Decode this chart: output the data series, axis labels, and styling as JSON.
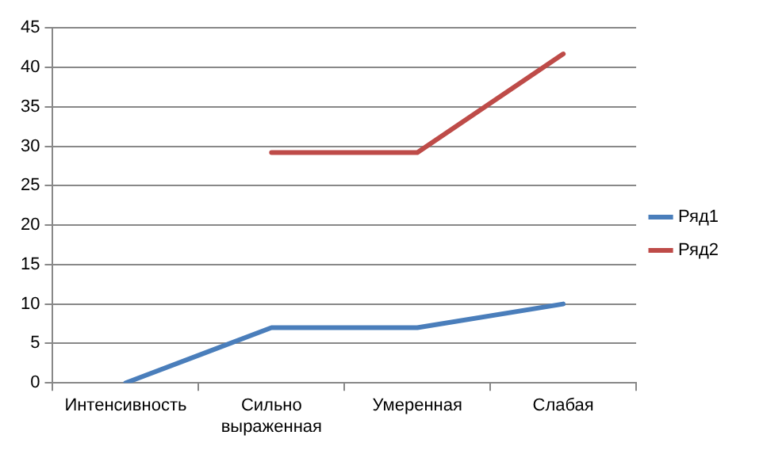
{
  "chart_data": {
    "type": "line",
    "categories": [
      "Интенсивность",
      "Сильно выраженная",
      "Умеренная",
      "Слабая"
    ],
    "series": [
      {
        "name": "Ряд1",
        "color": "#4a7ebb",
        "values": [
          0,
          7,
          7,
          10
        ]
      },
      {
        "name": "Ряд2",
        "color": "#be4b48",
        "values": [
          null,
          29.2,
          29.2,
          41.7
        ]
      }
    ],
    "ylim": [
      0,
      45
    ],
    "yticks": [
      0,
      5,
      10,
      15,
      20,
      25,
      30,
      35,
      40,
      45
    ],
    "grid": "y",
    "legend": "right",
    "marker": "none",
    "line_style": "solid"
  }
}
